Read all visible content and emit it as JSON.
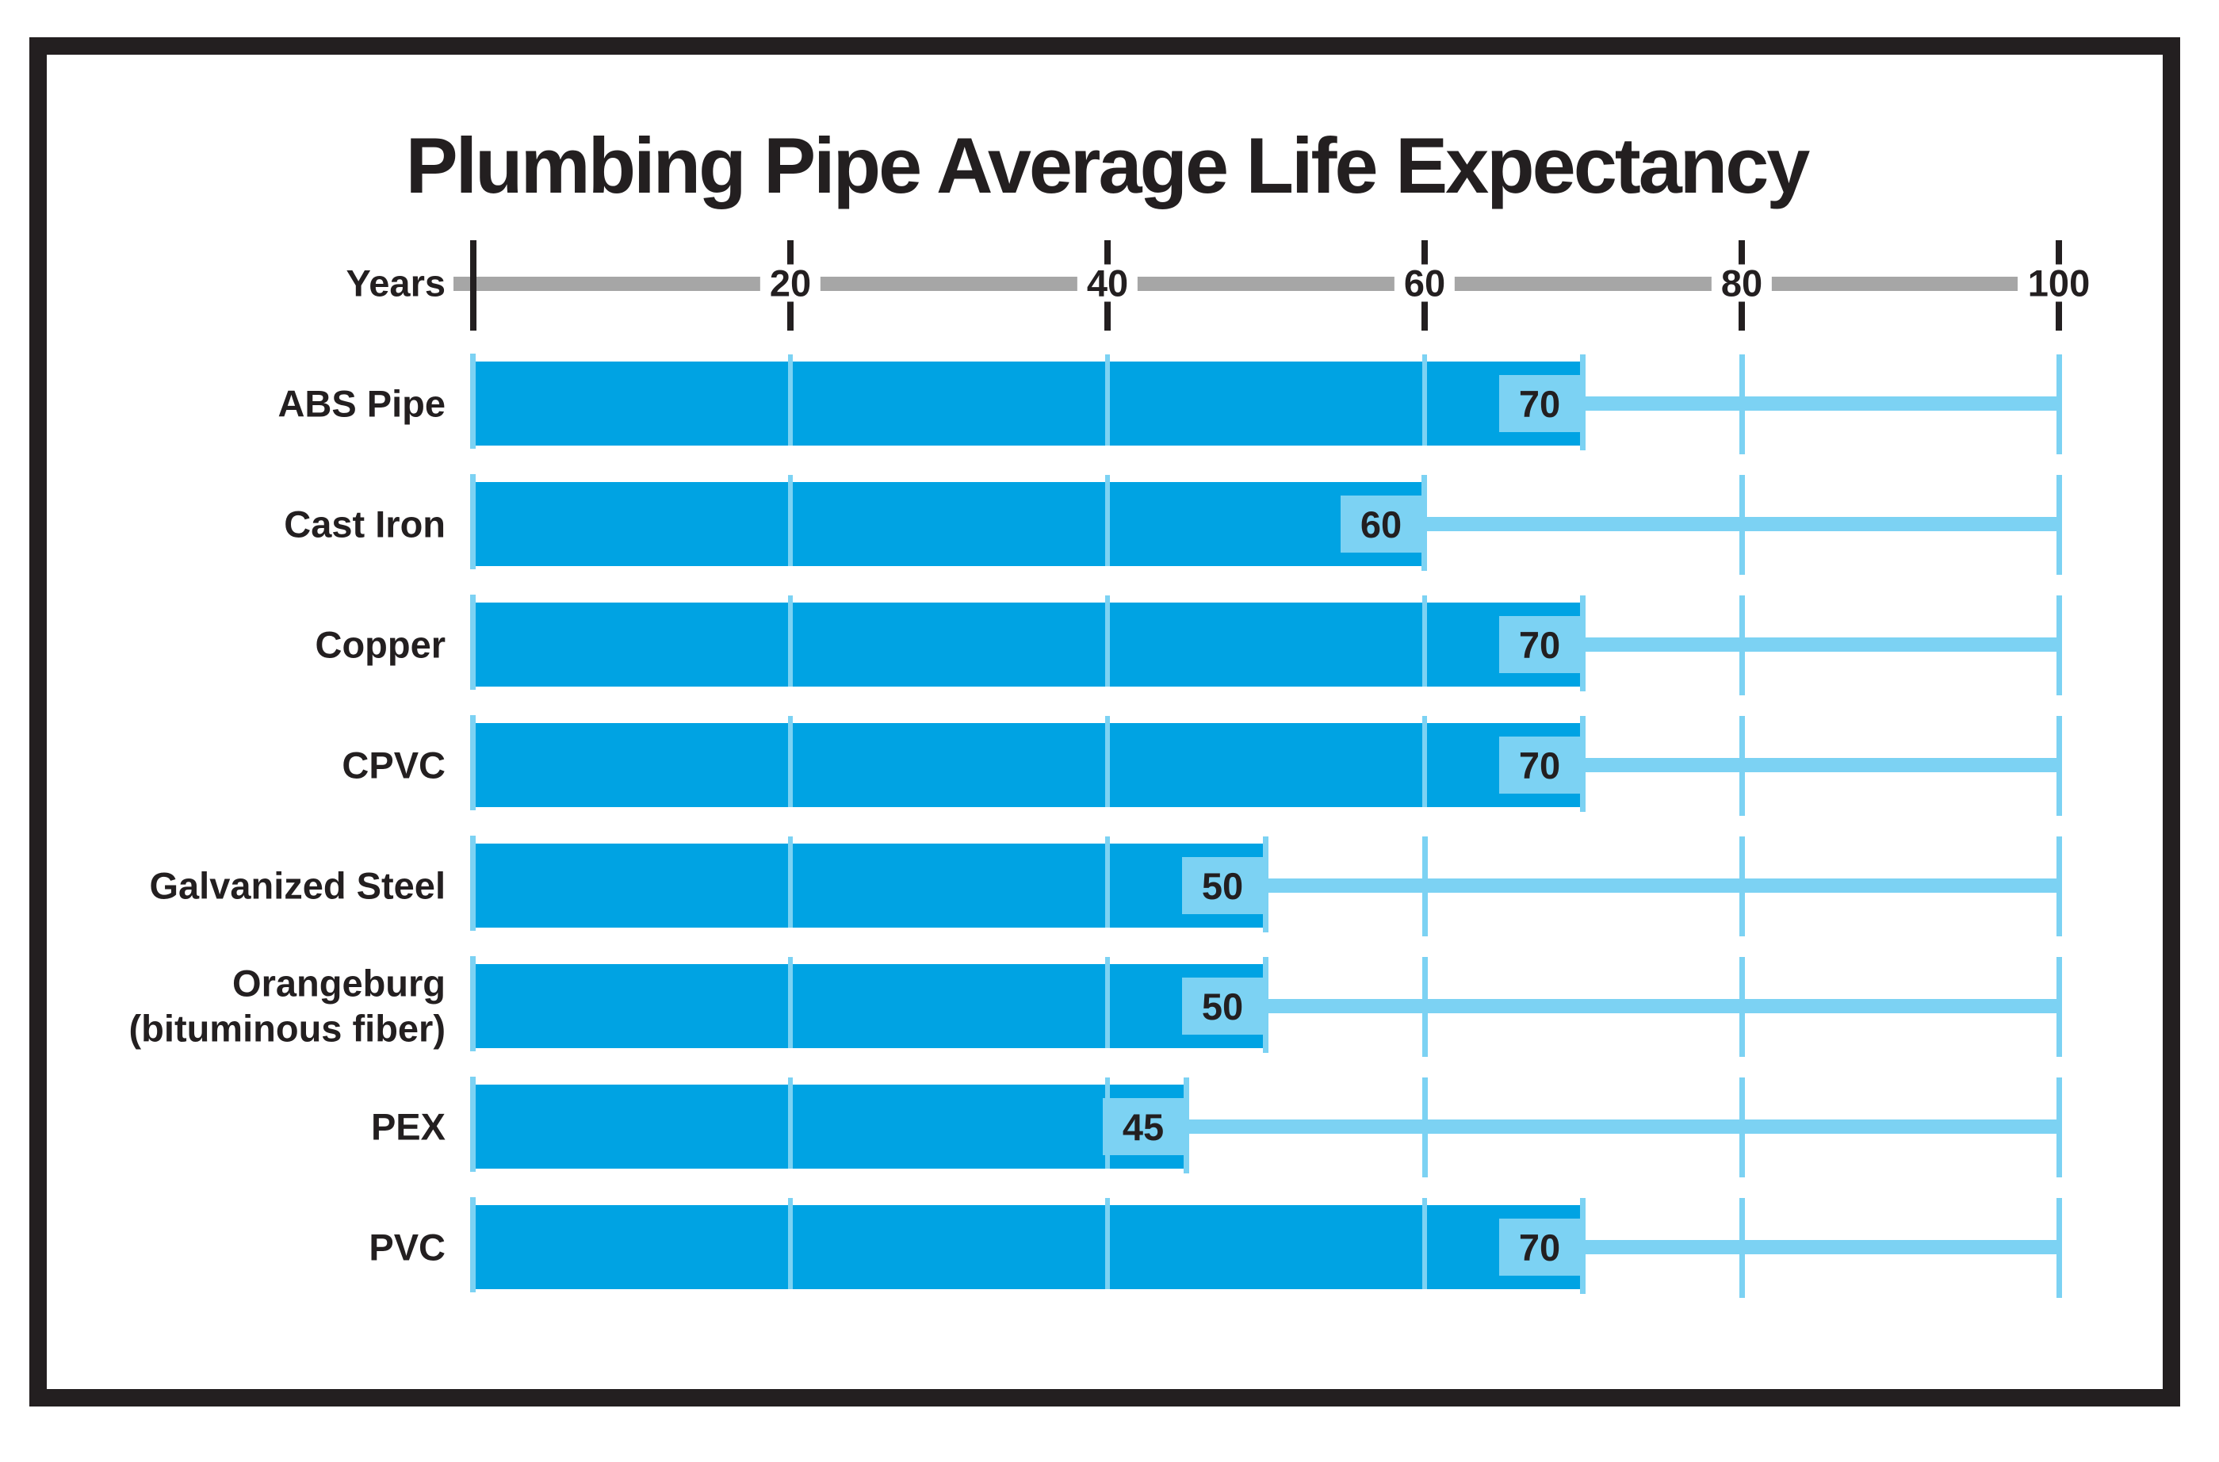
{
  "title": "Plumbing Pipe Average Life Expectancy",
  "axis": {
    "label": "Years",
    "min": 0,
    "max": 100,
    "tick_step": 20,
    "tick_labels": [
      "20",
      "40",
      "60",
      "80",
      "100"
    ]
  },
  "rows": [
    {
      "label_lines": [
        "ABS Pipe"
      ],
      "value": 70,
      "value_label": "70"
    },
    {
      "label_lines": [
        "Cast Iron"
      ],
      "value": 60,
      "value_label": "60"
    },
    {
      "label_lines": [
        "Copper"
      ],
      "value": 70,
      "value_label": "70"
    },
    {
      "label_lines": [
        "CPVC"
      ],
      "value": 70,
      "value_label": "70"
    },
    {
      "label_lines": [
        "Galvanized Steel"
      ],
      "value": 50,
      "value_label": "50"
    },
    {
      "label_lines": [
        "Orangeburg",
        "(bituminous fiber)"
      ],
      "value": 50,
      "value_label": "50"
    },
    {
      "label_lines": [
        "PEX"
      ],
      "value": 45,
      "value_label": "45"
    },
    {
      "label_lines": [
        "PVC"
      ],
      "value": 70,
      "value_label": "70"
    }
  ],
  "colors": {
    "bar_blue": "#00a3e3",
    "light_blue": "#7cd2f3",
    "axis_gray": "#a6a6a6",
    "ink": "#231f20",
    "background": "#ffffff"
  },
  "chart_data": {
    "type": "bar",
    "orientation": "horizontal",
    "title": "Plumbing Pipe Average Life Expectancy",
    "categories": [
      "ABS Pipe",
      "Cast Iron",
      "Copper",
      "CPVC",
      "Galvanized Steel",
      "Orangeburg (bituminous fiber)",
      "PEX",
      "PVC"
    ],
    "values": [
      70,
      60,
      70,
      70,
      50,
      50,
      45,
      70
    ],
    "xlabel": "Years",
    "ylabel": "",
    "xlim": [
      0,
      100
    ],
    "x_ticks": [
      0,
      20,
      40,
      60,
      80,
      100
    ],
    "data_labels_shown": true,
    "legend_position": "none",
    "grid": "light-blue vertical tick segments at 20-year intervals; reference lines extend each bar to 100 years"
  }
}
